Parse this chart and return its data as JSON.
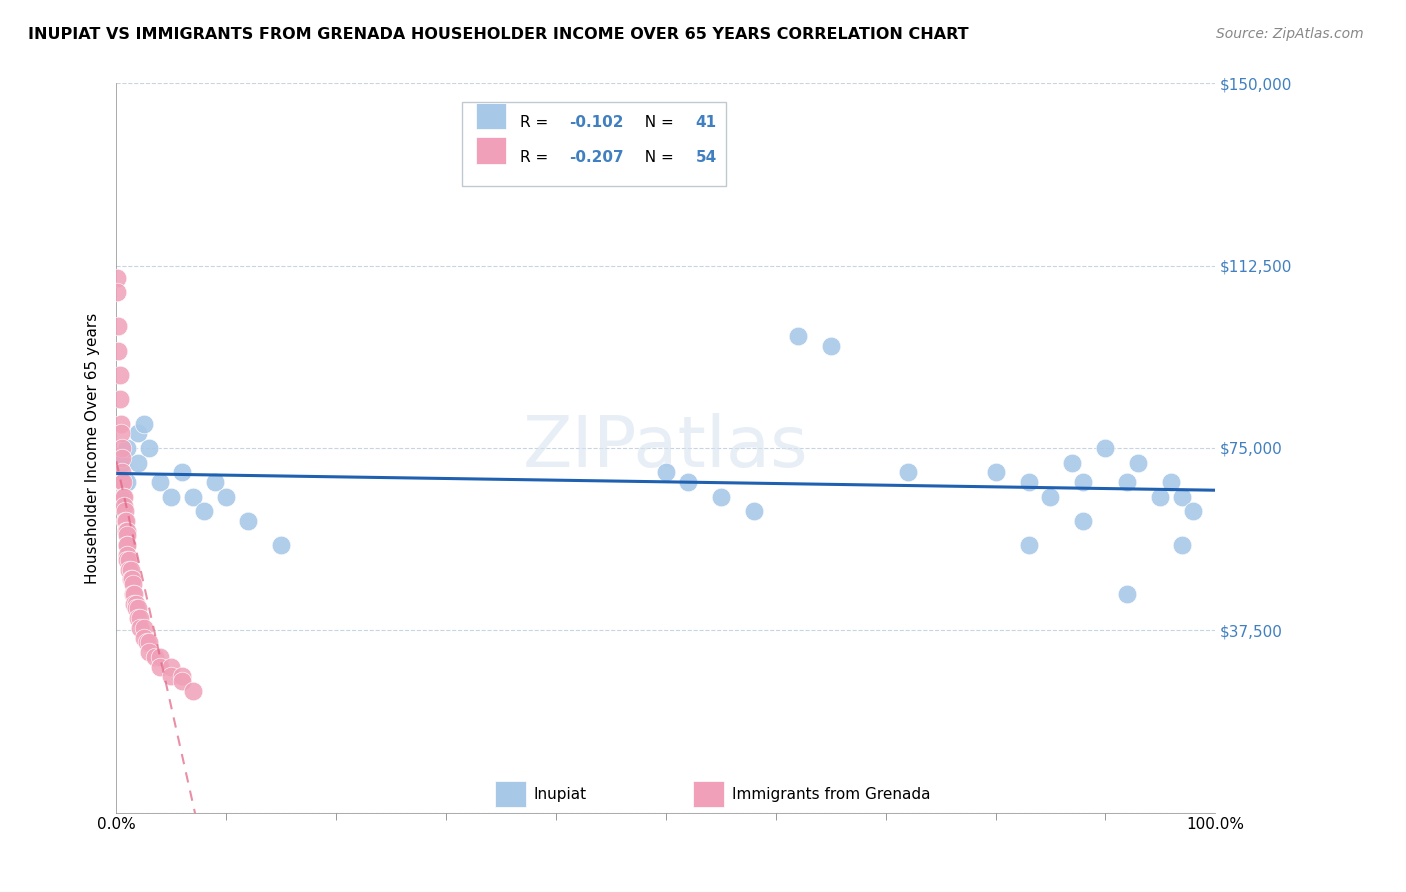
{
  "title": "INUPIAT VS IMMIGRANTS FROM GRENADA HOUSEHOLDER INCOME OVER 65 YEARS CORRELATION CHART",
  "source": "Source: ZipAtlas.com",
  "ylabel": "Householder Income Over 65 years",
  "xlim": [
    0,
    1.0
  ],
  "ylim": [
    0,
    150000
  ],
  "yticks": [
    0,
    37500,
    75000,
    112500,
    150000
  ],
  "ytick_labels": [
    "",
    "$37,500",
    "$75,000",
    "$112,500",
    "$150,000"
  ],
  "xtick_majors": [
    0.0,
    1.0
  ],
  "xtick_minors": [
    0.1,
    0.2,
    0.3,
    0.4,
    0.5,
    0.6,
    0.7,
    0.8,
    0.9
  ],
  "xtick_major_labels": [
    "0.0%",
    "100.0%"
  ],
  "inupiat_R": "-0.102",
  "inupiat_N": "41",
  "grenada_R": "-0.207",
  "grenada_N": "54",
  "inupiat_color": "#a8c8e8",
  "grenada_color": "#f0a0b8",
  "inupiat_line_color": "#2060b0",
  "grenada_line_color": "#e06080",
  "background_color": "#ffffff",
  "grid_color": "#c8d4e0",
  "right_tick_color": "#4080c0",
  "legend_edge_color": "#c0c8d0",
  "watermark_color": "#d8e4f0",
  "inupiat_x": [
    0.003,
    0.005,
    0.008,
    0.01,
    0.01,
    0.02,
    0.02,
    0.025,
    0.03,
    0.04,
    0.05,
    0.06,
    0.07,
    0.08,
    0.09,
    0.1,
    0.12,
    0.15,
    0.5,
    0.52,
    0.55,
    0.58,
    0.62,
    0.65,
    0.72,
    0.8,
    0.83,
    0.85,
    0.87,
    0.88,
    0.9,
    0.92,
    0.93,
    0.95,
    0.96,
    0.97,
    0.98,
    0.83,
    0.88,
    0.92,
    0.97
  ],
  "inupiat_y": [
    65000,
    72000,
    68000,
    75000,
    68000,
    78000,
    72000,
    80000,
    75000,
    68000,
    65000,
    70000,
    65000,
    62000,
    68000,
    65000,
    60000,
    55000,
    70000,
    68000,
    65000,
    62000,
    98000,
    96000,
    70000,
    70000,
    68000,
    65000,
    72000,
    68000,
    75000,
    68000,
    72000,
    65000,
    68000,
    65000,
    62000,
    55000,
    60000,
    45000,
    55000
  ],
  "grenada_x": [
    0.001,
    0.001,
    0.002,
    0.002,
    0.003,
    0.003,
    0.004,
    0.004,
    0.005,
    0.005,
    0.005,
    0.005,
    0.006,
    0.006,
    0.007,
    0.007,
    0.008,
    0.008,
    0.009,
    0.009,
    0.01,
    0.01,
    0.01,
    0.01,
    0.01,
    0.01,
    0.012,
    0.012,
    0.013,
    0.013,
    0.014,
    0.015,
    0.015,
    0.016,
    0.016,
    0.018,
    0.018,
    0.02,
    0.02,
    0.022,
    0.022,
    0.025,
    0.025,
    0.028,
    0.03,
    0.03,
    0.035,
    0.04,
    0.04,
    0.05,
    0.05,
    0.06,
    0.06,
    0.07
  ],
  "grenada_y": [
    110000,
    107000,
    100000,
    95000,
    90000,
    85000,
    80000,
    78000,
    75000,
    73000,
    70000,
    68000,
    68000,
    65000,
    65000,
    63000,
    62000,
    60000,
    60000,
    58000,
    58000,
    57000,
    55000,
    55000,
    53000,
    52000,
    52000,
    50000,
    50000,
    48000,
    48000,
    47000,
    45000,
    45000,
    43000,
    43000,
    42000,
    42000,
    40000,
    40000,
    38000,
    38000,
    36000,
    35000,
    35000,
    33000,
    32000,
    32000,
    30000,
    30000,
    28000,
    28000,
    27000,
    25000
  ]
}
